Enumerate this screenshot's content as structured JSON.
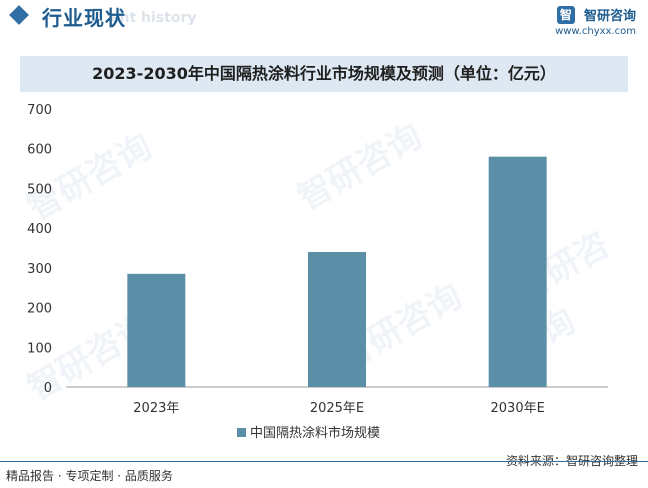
{
  "header": {
    "section_title": "行业现状",
    "ghost_text": "ent history",
    "brand_logo": "智",
    "brand_name": "智研咨询",
    "brand_url": "www.chyxx.com"
  },
  "footer": {
    "left": "精品报告 · 专项定制 · 品质服务",
    "right": "资料来源：智研咨询整理"
  },
  "watermark": "智研咨询",
  "colors": {
    "bar": "#5b8fa8",
    "accent": "#2f6fa6",
    "title_band": "#dde8f2"
  },
  "chart_data": {
    "type": "bar",
    "title": "2023-2030年中国隔热涂料行业市场规模及预测（单位：亿元）",
    "categories": [
      "2023年",
      "2025年E",
      "2030年E"
    ],
    "series": [
      {
        "name": "中国隔热涂料市场规模",
        "values": [
          285,
          340,
          580
        ]
      }
    ],
    "ylim": [
      0,
      700
    ],
    "yticks": [
      0,
      100,
      200,
      300,
      400,
      500,
      600,
      700
    ],
    "grid": false,
    "legend": "bottom"
  }
}
